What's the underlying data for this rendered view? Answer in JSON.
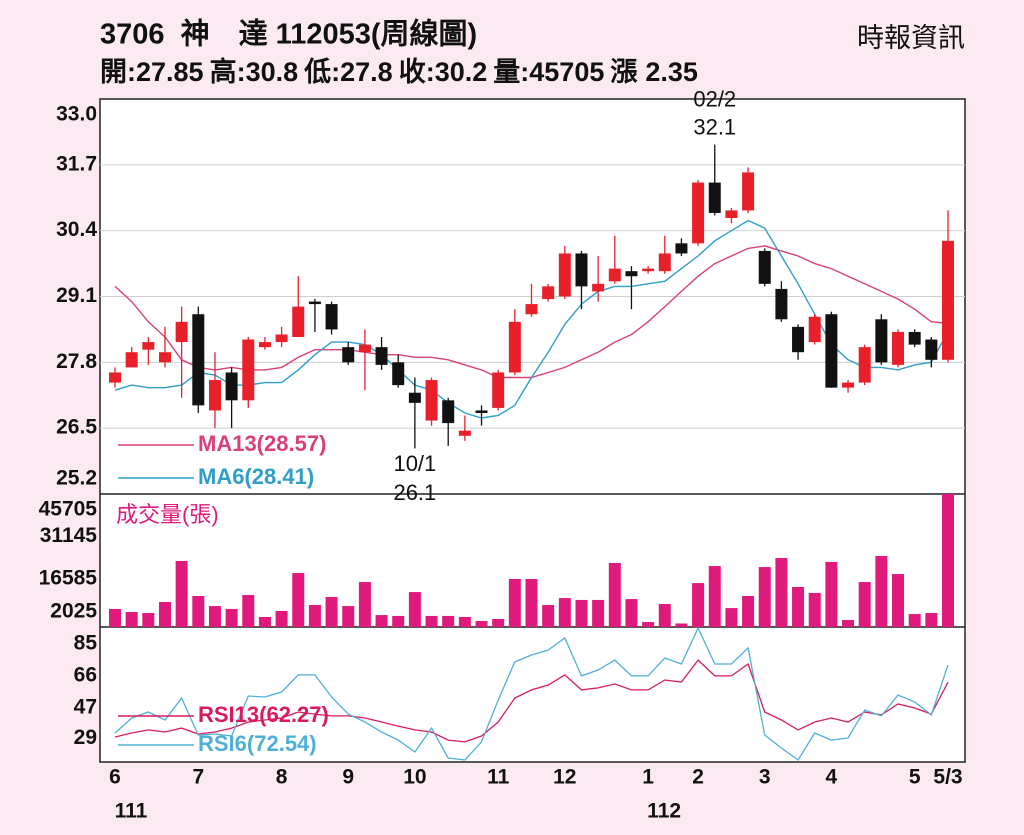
{
  "chart_data": [
    {
      "type": "candlestick",
      "title": "3706  神　達 112053(周線圖)",
      "source": "時報資訊",
      "summary_labels": {
        "open": "開:",
        "high": "高:",
        "low": "低:",
        "close": "收:",
        "volume": "量:",
        "change": "漲"
      },
      "change": 2.35,
      "open": [
        27.4,
        27.7,
        28.05,
        27.8,
        28.2,
        28.75,
        26.85,
        27.6,
        27.05,
        28.1,
        28.2,
        28.3,
        29.0,
        28.95,
        28.1,
        28.0,
        28.1,
        27.8,
        27.2,
        26.65,
        27.05,
        26.35,
        26.85,
        26.9,
        27.6,
        28.75,
        29.05,
        29.1,
        29.95,
        29.2,
        29.4,
        29.6,
        29.6,
        29.6,
        30.15,
        30.15,
        31.35,
        30.65,
        30.8,
        30.0,
        29.25,
        28.5,
        28.2,
        28.75,
        27.3,
        27.4,
        28.65,
        27.75,
        28.4,
        28.25,
        27.85
      ],
      "high": [
        27.7,
        28.1,
        28.3,
        28.5,
        28.9,
        28.9,
        28.0,
        27.7,
        28.3,
        28.3,
        28.5,
        29.5,
        29.05,
        29.0,
        28.2,
        28.45,
        28.3,
        27.95,
        27.5,
        27.5,
        27.1,
        26.75,
        26.95,
        27.65,
        28.85,
        29.35,
        29.35,
        30.1,
        30.0,
        29.9,
        30.3,
        29.7,
        29.7,
        30.3,
        30.25,
        31.4,
        32.1,
        30.85,
        31.65,
        30.05,
        29.4,
        28.55,
        28.75,
        28.8,
        27.45,
        28.15,
        28.75,
        28.45,
        28.45,
        28.3,
        30.8
      ],
      "low": [
        27.3,
        27.7,
        27.75,
        27.7,
        27.1,
        26.8,
        26.5,
        26.5,
        26.9,
        28.05,
        28.1,
        28.3,
        28.4,
        28.35,
        27.75,
        27.25,
        27.65,
        27.3,
        26.1,
        26.55,
        26.15,
        26.25,
        26.55,
        26.85,
        27.55,
        28.7,
        29.0,
        29.05,
        28.85,
        29.0,
        29.35,
        28.85,
        29.55,
        29.55,
        29.9,
        30.1,
        30.7,
        30.55,
        30.75,
        29.3,
        28.6,
        27.85,
        28.15,
        27.3,
        27.2,
        27.35,
        27.75,
        27.7,
        28.1,
        27.7,
        27.8
      ],
      "close": [
        27.6,
        28.0,
        28.2,
        28.0,
        28.6,
        26.95,
        27.45,
        27.05,
        28.25,
        28.2,
        28.35,
        28.9,
        28.95,
        28.45,
        27.8,
        28.15,
        27.75,
        27.35,
        27.0,
        27.45,
        26.6,
        26.45,
        26.8,
        27.6,
        28.6,
        28.95,
        29.3,
        29.95,
        29.3,
        29.35,
        29.65,
        29.5,
        29.65,
        29.95,
        29.95,
        31.35,
        30.75,
        30.8,
        31.55,
        29.35,
        28.65,
        28.0,
        28.7,
        27.3,
        27.4,
        28.1,
        27.8,
        28.4,
        28.15,
        27.85,
        30.2
      ],
      "up_color": "#e8202a",
      "down_color": "#111111",
      "ylim": [
        25.2,
        33.0
      ],
      "yticks": [
        {
          "value": 33.0,
          "label": "33.0"
        },
        31.7,
        30.4,
        29.1,
        27.8,
        26.5,
        25.2
      ],
      "grid": true,
      "annotations": {
        "high_date": "02/2",
        "low_date": "10/1"
      },
      "series": [
        {
          "name": "MA13(28.57)",
          "color": "#d9407a",
          "values": [
            29.3,
            29.0,
            28.6,
            28.3,
            27.85,
            27.7,
            27.65,
            27.7,
            27.65,
            27.65,
            27.7,
            27.9,
            28.05,
            28.05,
            28.05,
            28.0,
            27.95,
            27.95,
            27.9,
            27.9,
            27.85,
            27.75,
            27.65,
            27.5,
            27.5,
            27.5,
            27.6,
            27.7,
            27.85,
            28.0,
            28.2,
            28.35,
            28.6,
            28.9,
            29.2,
            29.5,
            29.75,
            29.9,
            30.05,
            30.1,
            30.0,
            29.9,
            29.75,
            29.65,
            29.5,
            29.35,
            29.2,
            29.05,
            28.85,
            28.6,
            28.57
          ]
        },
        {
          "name": "MA6(28.41)",
          "color": "#2f9fc6",
          "values": [
            27.25,
            27.35,
            27.3,
            27.3,
            27.35,
            27.6,
            27.55,
            27.35,
            27.35,
            27.4,
            27.4,
            27.65,
            27.95,
            28.2,
            28.2,
            28.15,
            27.95,
            27.65,
            27.35,
            27.25,
            27.0,
            26.8,
            26.7,
            26.75,
            26.95,
            27.5,
            28.0,
            28.55,
            28.95,
            29.2,
            29.3,
            29.3,
            29.35,
            29.4,
            29.65,
            29.9,
            30.2,
            30.4,
            30.6,
            30.45,
            29.9,
            29.35,
            28.75,
            28.15,
            27.85,
            27.7,
            27.7,
            27.65,
            27.75,
            27.8,
            28.41
          ]
        }
      ]
    },
    {
      "type": "bar",
      "label": "成交量(張)",
      "color": "#e0197d",
      "values": [
        6200,
        5150,
        4800,
        8600,
        22700,
        10650,
        7200,
        6200,
        11000,
        3450,
        5500,
        18550,
        7550,
        10300,
        7200,
        15450,
        4100,
        3800,
        12000,
        3800,
        3800,
        3450,
        2050,
        2750,
        16500,
        16500,
        7550,
        9950,
        9300,
        9300,
        22000,
        9600,
        1700,
        7900,
        1200,
        15100,
        20950,
        6500,
        10650,
        20600,
        23700,
        13750,
        11700,
        22350,
        2400,
        15450,
        24400,
        18200,
        4450,
        4800,
        45705
      ],
      "ylim": [
        0,
        45705
      ],
      "yticks": [
        45705,
        31145,
        16585,
        2025
      ]
    },
    {
      "type": "line",
      "categories": [
        "6",
        null,
        null,
        null,
        null,
        "7",
        null,
        null,
        null,
        null,
        "8",
        null,
        null,
        null,
        "9",
        null,
        null,
        null,
        "10",
        null,
        null,
        null,
        null,
        "11",
        null,
        null,
        null,
        "12",
        null,
        null,
        null,
        null,
        "1",
        null,
        null,
        "2",
        null,
        null,
        null,
        "3",
        null,
        null,
        null,
        "4",
        null,
        null,
        null,
        null,
        "5",
        null,
        "5/3"
      ],
      "years": [
        "111",
        null,
        null,
        null,
        null,
        null,
        null,
        null,
        null,
        null,
        null,
        null,
        null,
        null,
        null,
        null,
        null,
        null,
        null,
        null,
        null,
        null,
        null,
        null,
        null,
        null,
        null,
        null,
        null,
        null,
        null,
        null,
        "112",
        null,
        null,
        null,
        null,
        null,
        null,
        null,
        null,
        null,
        null,
        null,
        null,
        null,
        null,
        null,
        null,
        null,
        null
      ],
      "ylim": [
        15,
        95
      ],
      "yticks": [
        85,
        66,
        47,
        29
      ],
      "series": [
        {
          "name": "RSI13(62.27)",
          "color": "#d81b60",
          "values": [
            29.8,
            32.2,
            34.0,
            32.8,
            35.1,
            31.6,
            32.8,
            35.1,
            38.7,
            39.9,
            41.1,
            44.6,
            43.4,
            42.3,
            42.3,
            41.1,
            38.7,
            36.3,
            34.0,
            32.8,
            28.0,
            26.9,
            30.4,
            38.7,
            52.9,
            57.7,
            60.6,
            66.6,
            57.7,
            58.9,
            61.2,
            57.7,
            57.7,
            63.6,
            62.4,
            75.4,
            66.0,
            66.0,
            73.1,
            44.6,
            39.9,
            34.0,
            38.7,
            41.1,
            38.7,
            44.6,
            42.9,
            49.4,
            47.0,
            43.4,
            62.27
          ]
        },
        {
          "name": "RSI6(72.54)",
          "color": "#4fb0d6",
          "values": [
            32.2,
            41.1,
            44.6,
            39.9,
            52.9,
            31.0,
            31.6,
            30.4,
            54.1,
            53.5,
            56.5,
            66.6,
            66.6,
            53.5,
            43.4,
            38.7,
            32.8,
            28.0,
            20.9,
            35.1,
            17.4,
            16.2,
            26.9,
            51.7,
            74.3,
            78.4,
            81.4,
            88.5,
            66.0,
            69.5,
            75.4,
            66.0,
            66.0,
            76.6,
            73.1,
            94.4,
            73.1,
            73.1,
            82.6,
            31.0,
            23.3,
            16.2,
            32.2,
            28.0,
            29.2,
            45.8,
            42.3,
            54.7,
            50.6,
            42.9,
            72.54
          ]
        }
      ]
    }
  ]
}
